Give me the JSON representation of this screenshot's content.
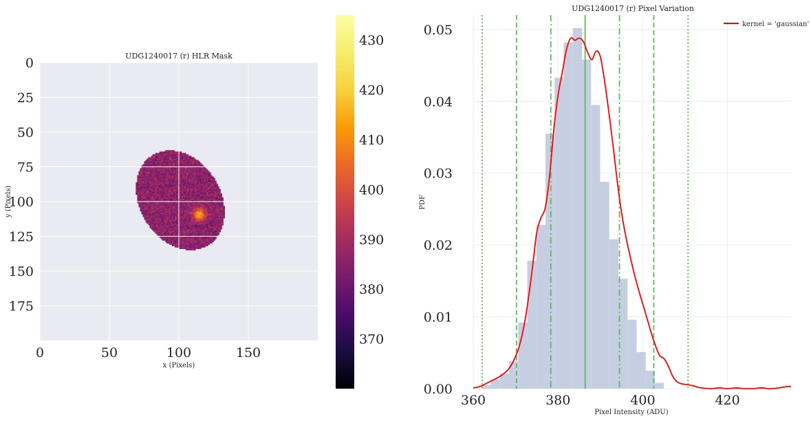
{
  "chart_data": [
    {
      "type": "heatmap",
      "title": "UDG1240017 (r) HLR Mask",
      "xlabel": "x (Pixels)",
      "ylabel": "y (Pixels)",
      "xlim": [
        0,
        200
      ],
      "ylim": [
        200,
        0
      ],
      "x_ticks": [
        "0",
        "50",
        "100",
        "150"
      ],
      "y_ticks": [
        "0",
        "25",
        "50",
        "75",
        "100",
        "125",
        "150",
        "175"
      ],
      "grid": true,
      "colormap": "inferno",
      "mask_ellipse": {
        "center_x": 101,
        "center_y": 99,
        "semi_major": 38,
        "semi_minor": 29,
        "angle_deg": 58
      },
      "bright_spot": {
        "x": 114,
        "y": 109
      },
      "colorbar": {
        "range": [
          360,
          435
        ],
        "ticks": [
          "370",
          "380",
          "390",
          "400",
          "410",
          "420",
          "430"
        ]
      }
    },
    {
      "type": "bar",
      "title": "UDG1240017 (r) Pixel Variation",
      "xlabel": "Pixel Intensity (ADU)",
      "ylabel": "PDF",
      "xlim": [
        360,
        435
      ],
      "ylim": [
        0,
        0.052
      ],
      "x_ticks": [
        "360",
        "380",
        "400",
        "420"
      ],
      "y_ticks": [
        "0.00",
        "0.01",
        "0.02",
        "0.03",
        "0.04",
        "0.05"
      ],
      "histogram": {
        "bin_start": 362,
        "bin_width": 2.15,
        "values": [
          0.0005,
          0.0013,
          0.0021,
          0.0038,
          0.0092,
          0.0178,
          0.0228,
          0.0355,
          0.0433,
          0.0482,
          0.0502,
          0.0458,
          0.0395,
          0.0288,
          0.0208,
          0.0153,
          0.0096,
          0.0051,
          0.0025,
          0.0008
        ]
      },
      "kde": {
        "label": "kernel = 'gaussian'",
        "points": [
          [
            360,
            0.0001
          ],
          [
            361,
            0.0002
          ],
          [
            362,
            0.0004
          ],
          [
            363,
            0.0007
          ],
          [
            364,
            0.001
          ],
          [
            365,
            0.0013
          ],
          [
            366,
            0.0016
          ],
          [
            367,
            0.002
          ],
          [
            368,
            0.0025
          ],
          [
            369,
            0.0033
          ],
          [
            370,
            0.0045
          ],
          [
            371,
            0.0062
          ],
          [
            372,
            0.0088
          ],
          [
            373,
            0.0125
          ],
          [
            374,
            0.017
          ],
          [
            375,
            0.0218
          ],
          [
            376,
            0.0238
          ],
          [
            377,
            0.0252
          ],
          [
            378,
            0.0295
          ],
          [
            379,
            0.036
          ],
          [
            380,
            0.0408
          ],
          [
            381,
            0.044
          ],
          [
            382,
            0.0472
          ],
          [
            383,
            0.0488
          ],
          [
            384,
            0.0485
          ],
          [
            385,
            0.0488
          ],
          [
            386,
            0.0483
          ],
          [
            387,
            0.0468
          ],
          [
            388,
            0.0458
          ],
          [
            389,
            0.047
          ],
          [
            390,
            0.0462
          ],
          [
            391,
            0.0428
          ],
          [
            392,
            0.0385
          ],
          [
            393,
            0.0338
          ],
          [
            394,
            0.0288
          ],
          [
            395,
            0.0245
          ],
          [
            396,
            0.0212
          ],
          [
            397,
            0.0185
          ],
          [
            398,
            0.016
          ],
          [
            399,
            0.0138
          ],
          [
            400,
            0.0118
          ],
          [
            401,
            0.0098
          ],
          [
            402,
            0.0078
          ],
          [
            403,
            0.006
          ],
          [
            404,
            0.0046
          ],
          [
            405,
            0.0042
          ],
          [
            406,
            0.0032
          ],
          [
            407,
            0.0018
          ],
          [
            408,
            0.001
          ],
          [
            409,
            0.0007
          ],
          [
            410,
            0.0006
          ],
          [
            411,
            0.0005
          ],
          [
            412,
            0.0004
          ],
          [
            413,
            0.0002
          ],
          [
            414,
            0.0001
          ],
          [
            416,
            0.0
          ],
          [
            418,
            0.0001
          ],
          [
            420,
            0.0
          ],
          [
            422,
            0.0001
          ],
          [
            424,
            0.0
          ],
          [
            426,
            0.0
          ],
          [
            428,
            0.0001
          ],
          [
            430,
            0.0
          ],
          [
            432,
            0.0001
          ],
          [
            434,
            0.0003
          ],
          [
            435,
            0.0003
          ]
        ]
      },
      "vlines": [
        {
          "x": 386.4,
          "style": "solid"
        },
        {
          "x": 378.3,
          "style": "dashdot"
        },
        {
          "x": 394.5,
          "style": "dashdot"
        },
        {
          "x": 370.2,
          "style": "dashed"
        },
        {
          "x": 402.6,
          "style": "dashed"
        },
        {
          "x": 362.1,
          "style": "dotted"
        },
        {
          "x": 410.7,
          "style": "dotted"
        }
      ],
      "legend": "top-right",
      "colors": {
        "hist": "#c5cfe1",
        "kde": "#ff0000",
        "vline": "#5cb85c",
        "grid_bg": "#eaeaf2"
      }
    }
  ]
}
